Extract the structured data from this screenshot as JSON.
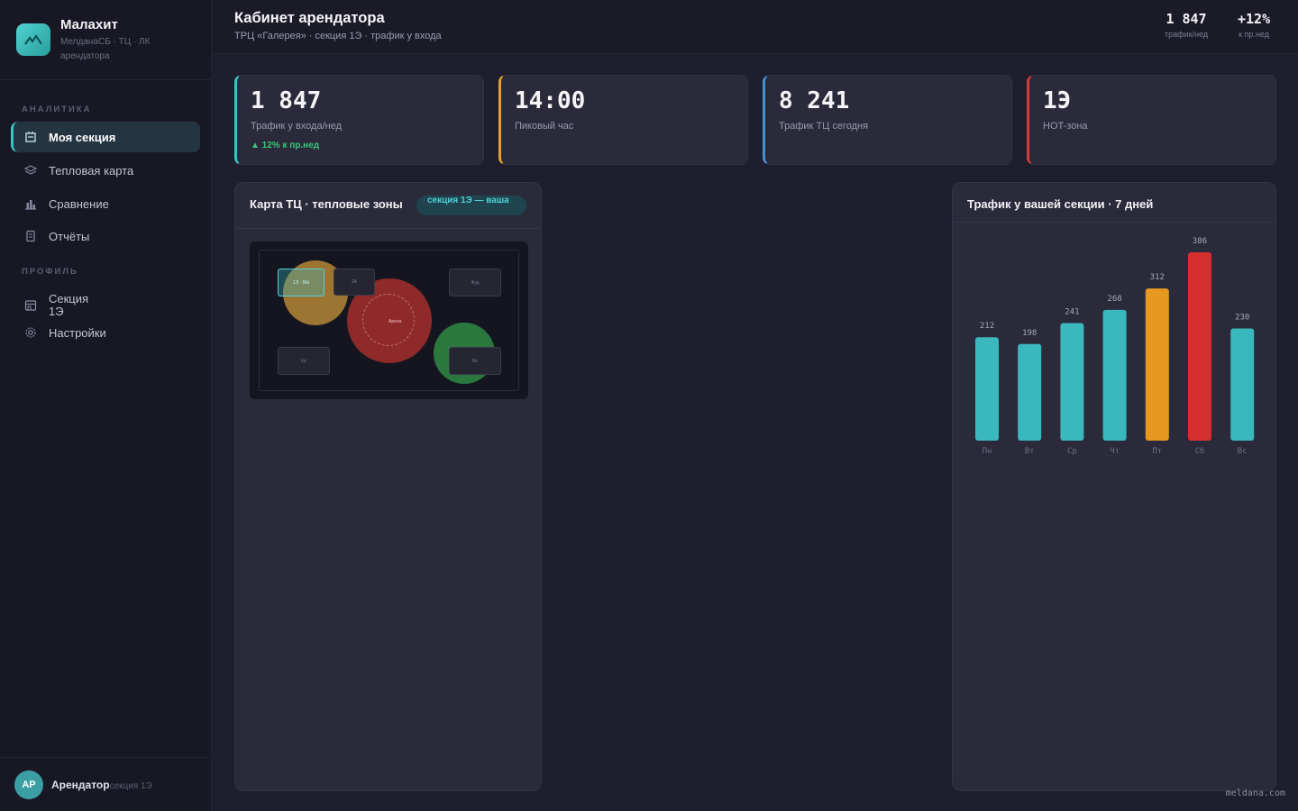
{
  "brand": {
    "name": "Малахит",
    "sub": "МелданаСБ · ТЦ · ЛК арендатора",
    "logo_icon": "mountain-icon"
  },
  "sidebar": {
    "section_analytics": "АНАЛИТИКА",
    "section_profile": "ПРОФИЛЬ",
    "items": [
      {
        "label": "Моя секция",
        "icon": "building-icon",
        "active": true
      },
      {
        "label": "Тепловая карта",
        "icon": "layers-icon",
        "active": false
      },
      {
        "label": "Сравнение",
        "icon": "bar-chart-icon",
        "active": false
      },
      {
        "label": "Отчёты",
        "icon": "document-icon",
        "active": false
      },
      {
        "label": "Секция\n1Э",
        "icon": "store-icon",
        "active": false
      },
      {
        "label": "Настройки",
        "icon": "gear-icon",
        "active": false
      }
    ]
  },
  "user": {
    "initials": "АР",
    "name": "Арендатор",
    "role": "секция 1Э"
  },
  "header": {
    "title": "Кабинет арендатора",
    "subtitle": "ТРЦ «Галерея» · секция 1Э · трафик у входа",
    "stats": [
      {
        "value": "1 847",
        "label": "трафик/нед"
      },
      {
        "value": "+12%",
        "label": "к пр.нед"
      }
    ]
  },
  "kpis": [
    {
      "value": "1 847",
      "label": "Трафик у входа/нед",
      "trend": "▲ 12% к пр.нед",
      "color": "#3fc3c3"
    },
    {
      "value": "14:00",
      "label": "Пиковый час",
      "trend": "",
      "color": "#e6a028"
    },
    {
      "value": "8 241",
      "label": "Трафик ТЦ сегодня",
      "trend": "",
      "color": "#4a8fd4"
    },
    {
      "value": "1Э",
      "label": "HOT-зона",
      "trend": "",
      "color": "#d63a3a"
    }
  ],
  "map_panel": {
    "title": "Карта ТЦ · тепловые зоны",
    "badge": "секция 1Э — ваша",
    "shops": [
      "1Э · ВЫ",
      "2А",
      "Фуд",
      "Арена",
      "Кр",
      "Вх"
    ],
    "zone_colors": {
      "warm": "#c9953a",
      "hot": "#b8322f",
      "cool": "#2f8a45"
    }
  },
  "chart_panel": {
    "title": "Трафик у вашей секции · 7 дней"
  },
  "chart_data": {
    "type": "bar",
    "title": "Трафик у вашей секции · 7 дней",
    "categories": [
      "Пн",
      "Вт",
      "Ср",
      "Чт",
      "Пт",
      "Сб",
      "Вс"
    ],
    "values": [
      212,
      198,
      241,
      268,
      312,
      386,
      230
    ],
    "colors": [
      "#3ab8bd",
      "#3ab8bd",
      "#3ab8bd",
      "#3ab8bd",
      "#e6981f",
      "#d42f2f",
      "#3ab8bd"
    ],
    "xlabel": "",
    "ylabel": "",
    "ylim": [
      0,
      386
    ],
    "grid": false
  },
  "footer": "meldana.com"
}
